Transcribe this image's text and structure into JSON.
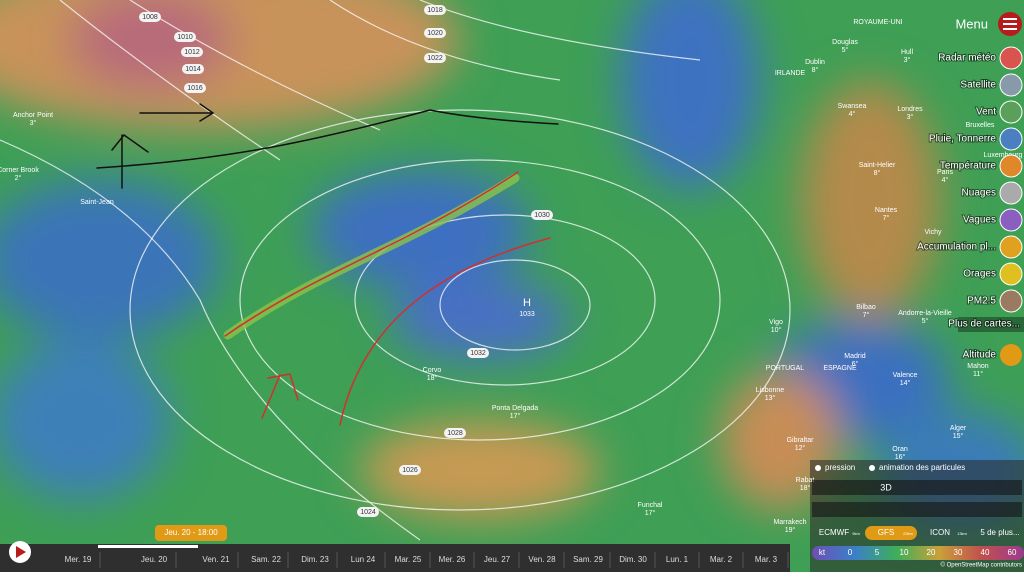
{
  "isobars": [
    "1008",
    "1010",
    "1012",
    "1014",
    "1016",
    "1018",
    "1020",
    "1022",
    "1030",
    "1032",
    "1028",
    "1026",
    "1024"
  ],
  "pressure_center": {
    "label": "H",
    "value": "1033"
  },
  "places": [
    {
      "name": "Anchor Point",
      "temp": "3°"
    },
    {
      "name": "Corner Brook",
      "temp": "2°"
    },
    {
      "name": "Saint-Jean"
    },
    {
      "name": "Corvo",
      "temp": "18°"
    },
    {
      "name": "Ponta Delgada",
      "temp": "17°"
    },
    {
      "name": "Funchal",
      "temp": "17°"
    },
    {
      "name": "ROYAUME-UNI"
    },
    {
      "name": "Douglas",
      "temp": "5°"
    },
    {
      "name": "Dublin",
      "temp": "8°"
    },
    {
      "name": "Hull",
      "temp": "3°"
    },
    {
      "name": "IRLANDE"
    },
    {
      "name": "Swansea",
      "temp": "4°"
    },
    {
      "name": "Londres",
      "temp": "3°"
    },
    {
      "name": "Bruxelles"
    },
    {
      "name": "Luxembourg"
    },
    {
      "name": "Saint-Helier",
      "temp": "8°"
    },
    {
      "name": "Paris",
      "temp": "4°"
    },
    {
      "name": "Nantes",
      "temp": "7°"
    },
    {
      "name": "Vichy"
    },
    {
      "name": "Bilbao",
      "temp": "7°"
    },
    {
      "name": "Andorre-la-Vieille",
      "temp": "5°"
    },
    {
      "name": "Vigo",
      "temp": "10°"
    },
    {
      "name": "PORTUGAL"
    },
    {
      "name": "ESPAGNE"
    },
    {
      "name": "Madrid",
      "temp": "6°"
    },
    {
      "name": "Valence",
      "temp": "14°"
    },
    {
      "name": "Lisbonne",
      "temp": "13°"
    },
    {
      "name": "Mahon",
      "temp": "11°"
    },
    {
      "name": "Alger",
      "temp": "15°"
    },
    {
      "name": "Gibraltar",
      "temp": "12°"
    },
    {
      "name": "Oran",
      "temp": "16°"
    },
    {
      "name": "Rabat",
      "temp": "18°"
    },
    {
      "name": "Marrakech",
      "temp": "19°"
    }
  ],
  "menu": {
    "title": "Menu",
    "layers": [
      "Radar météo",
      "Satellite",
      "Vent",
      "Pluie, Tonnerre",
      "Température",
      "Nuages",
      "Vagues",
      "Accumulation pl...",
      "Orages",
      "PM2.5"
    ],
    "more": "Plus de cartes...",
    "altitude": "Altitude"
  },
  "controls": {
    "toggles": [
      "pression",
      "animation des particules"
    ],
    "view": "3D",
    "models": [
      {
        "name": "ECMWF",
        "res": "9km"
      },
      {
        "name": "GFS",
        "res": "22km"
      },
      {
        "name": "ICON",
        "res": "13km"
      }
    ],
    "more_models": "5 de plus...",
    "legend": {
      "unit": "kt",
      "stops": [
        "0",
        "5",
        "10",
        "20",
        "30",
        "40",
        "60"
      ]
    }
  },
  "timeline": {
    "current": "Jeu. 20 - 18:00",
    "days": [
      "Mer. 19",
      "Jeu. 20",
      "Ven. 21",
      "Sam. 22",
      "Dim. 23",
      "Lun 24",
      "Mar. 25",
      "Mer. 26",
      "Jeu. 27",
      "Ven. 28",
      "Sam. 29",
      "Dim. 30",
      "Lun. 1",
      "Mar. 2",
      "Mar. 3"
    ]
  },
  "attribution": "© OpenStreetMap contributors"
}
